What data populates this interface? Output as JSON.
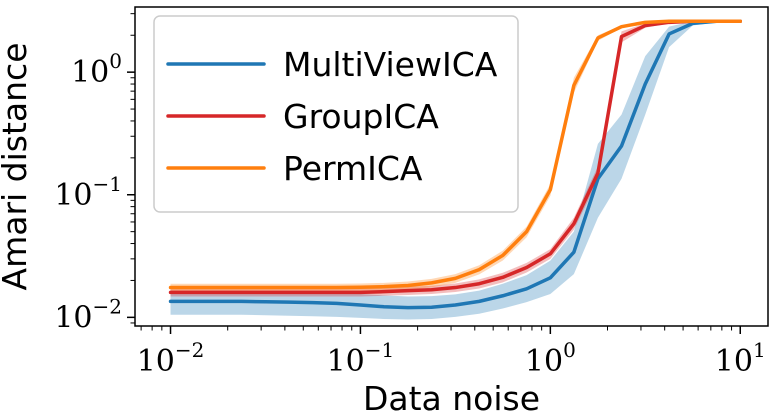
{
  "chart_data": {
    "type": "line",
    "xscale": "log",
    "yscale": "log",
    "xlabel": "Data noise",
    "ylabel": "Amari distance",
    "xlim": [
      0.0065,
      14
    ],
    "ylim": [
      0.0085,
      3.4
    ],
    "x_ticks": [
      {
        "value": 0.01,
        "base": "10",
        "exp": "−2"
      },
      {
        "value": 0.1,
        "base": "10",
        "exp": "−1"
      },
      {
        "value": 1,
        "base": "10",
        "exp": "0"
      },
      {
        "value": 10,
        "base": "10",
        "exp": "1"
      }
    ],
    "y_ticks": [
      {
        "value": 0.01,
        "base": "10",
        "exp": "−2"
      },
      {
        "value": 0.1,
        "base": "10",
        "exp": "−1"
      },
      {
        "value": 1,
        "base": "10",
        "exp": "0"
      }
    ],
    "x": [
      0.01,
      0.0133,
      0.0178,
      0.0237,
      0.0316,
      0.0422,
      0.0562,
      0.075,
      0.1,
      0.133,
      0.178,
      0.237,
      0.316,
      0.422,
      0.562,
      0.75,
      1.0,
      1.33,
      1.78,
      2.37,
      3.16,
      4.22,
      5.62,
      7.5,
      10.0
    ],
    "legend": {
      "position": "top-left"
    },
    "series": [
      {
        "name": "MultiViewICA",
        "color": "#1f77b4",
        "values": [
          0.0135,
          0.0135,
          0.0135,
          0.0135,
          0.0134,
          0.0133,
          0.0132,
          0.013,
          0.0126,
          0.0122,
          0.012,
          0.0121,
          0.0126,
          0.0135,
          0.015,
          0.0171,
          0.021,
          0.034,
          0.135,
          0.25,
          0.8,
          2.05,
          2.5,
          2.6,
          2.6
        ],
        "lower": [
          0.0105,
          0.0105,
          0.0105,
          0.0105,
          0.0104,
          0.0103,
          0.0102,
          0.0101,
          0.0099,
          0.0097,
          0.0096,
          0.0097,
          0.0101,
          0.0107,
          0.0118,
          0.0133,
          0.0155,
          0.0225,
          0.065,
          0.135,
          0.45,
          1.6,
          2.4,
          2.55,
          2.55
        ],
        "upper": [
          0.0165,
          0.0165,
          0.0165,
          0.0165,
          0.0164,
          0.0163,
          0.0162,
          0.016,
          0.0155,
          0.0151,
          0.0148,
          0.0149,
          0.0154,
          0.0165,
          0.0188,
          0.0221,
          0.029,
          0.05,
          0.26,
          0.45,
          1.35,
          2.35,
          2.6,
          2.65,
          2.65
        ]
      },
      {
        "name": "GroupICA",
        "color": "#d62728",
        "values": [
          0.016,
          0.016,
          0.016,
          0.016,
          0.016,
          0.016,
          0.016,
          0.016,
          0.016,
          0.0162,
          0.0165,
          0.0168,
          0.0175,
          0.0188,
          0.0212,
          0.0255,
          0.033,
          0.058,
          0.15,
          1.95,
          2.4,
          2.55,
          2.6,
          2.6,
          2.6
        ],
        "lower": [
          0.0148,
          0.0148,
          0.0148,
          0.0148,
          0.0148,
          0.0148,
          0.0148,
          0.0148,
          0.0148,
          0.015,
          0.0152,
          0.0155,
          0.0161,
          0.0172,
          0.0193,
          0.0232,
          0.03,
          0.052,
          0.13,
          1.75,
          2.3,
          2.5,
          2.55,
          2.55,
          2.55
        ],
        "upper": [
          0.0172,
          0.0172,
          0.0172,
          0.0172,
          0.0172,
          0.0172,
          0.0172,
          0.0172,
          0.0172,
          0.0174,
          0.0178,
          0.0181,
          0.0189,
          0.0204,
          0.0231,
          0.0278,
          0.036,
          0.065,
          0.17,
          2.15,
          2.5,
          2.6,
          2.65,
          2.65,
          2.65
        ]
      },
      {
        "name": "PermICA",
        "color": "#ff7f0e",
        "values": [
          0.0175,
          0.0175,
          0.0175,
          0.0175,
          0.0175,
          0.0175,
          0.0175,
          0.0175,
          0.0176,
          0.0178,
          0.0182,
          0.0191,
          0.0208,
          0.0245,
          0.032,
          0.05,
          0.11,
          0.78,
          1.9,
          2.35,
          2.55,
          2.6,
          2.6,
          2.6,
          2.6
        ],
        "lower": [
          0.0162,
          0.0162,
          0.0162,
          0.0162,
          0.0162,
          0.0162,
          0.0162,
          0.0162,
          0.0163,
          0.0165,
          0.0168,
          0.0176,
          0.0191,
          0.0224,
          0.0291,
          0.045,
          0.098,
          0.68,
          1.8,
          2.3,
          2.5,
          2.55,
          2.55,
          2.55,
          2.55
        ],
        "upper": [
          0.0188,
          0.0188,
          0.0188,
          0.0188,
          0.0188,
          0.0188,
          0.0188,
          0.0188,
          0.0189,
          0.0191,
          0.0196,
          0.0206,
          0.0225,
          0.0266,
          0.035,
          0.055,
          0.122,
          0.9,
          2.0,
          2.4,
          2.6,
          2.65,
          2.65,
          2.65,
          2.65
        ]
      }
    ]
  }
}
